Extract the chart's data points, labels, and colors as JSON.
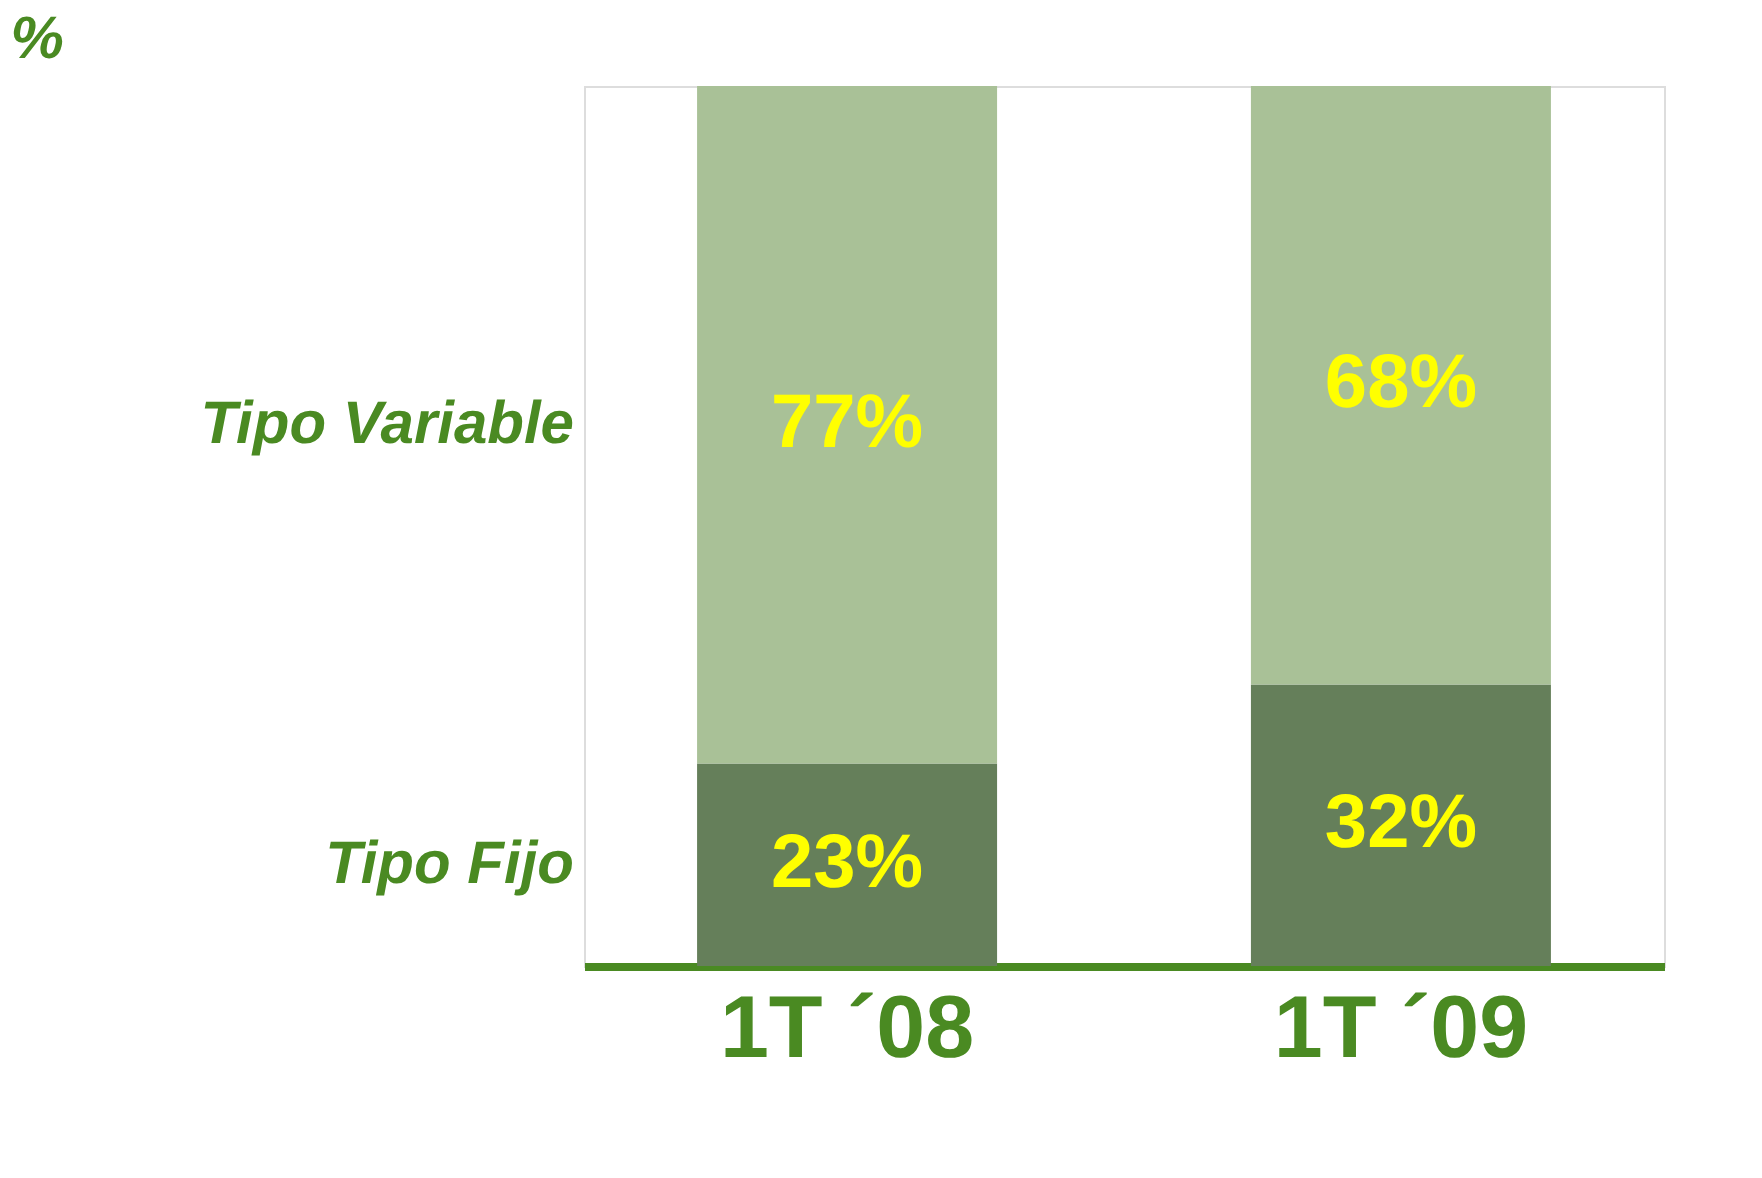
{
  "chart_data": {
    "type": "bar",
    "title": "%",
    "categories": [
      "1T ´08",
      "1T ´09"
    ],
    "stacked": true,
    "tick_labels": "x",
    "legend": false,
    "series": [
      {
        "name": "Tipo Fijo",
        "color": "#657f5a",
        "values": [
          23,
          32
        ],
        "value_labels": [
          "23%",
          "32%"
        ]
      },
      {
        "name": "Tipo Variable",
        "color": "#a9c197",
        "values": [
          77,
          68
        ],
        "value_labels": [
          "77%",
          "68%"
        ]
      }
    ]
  }
}
